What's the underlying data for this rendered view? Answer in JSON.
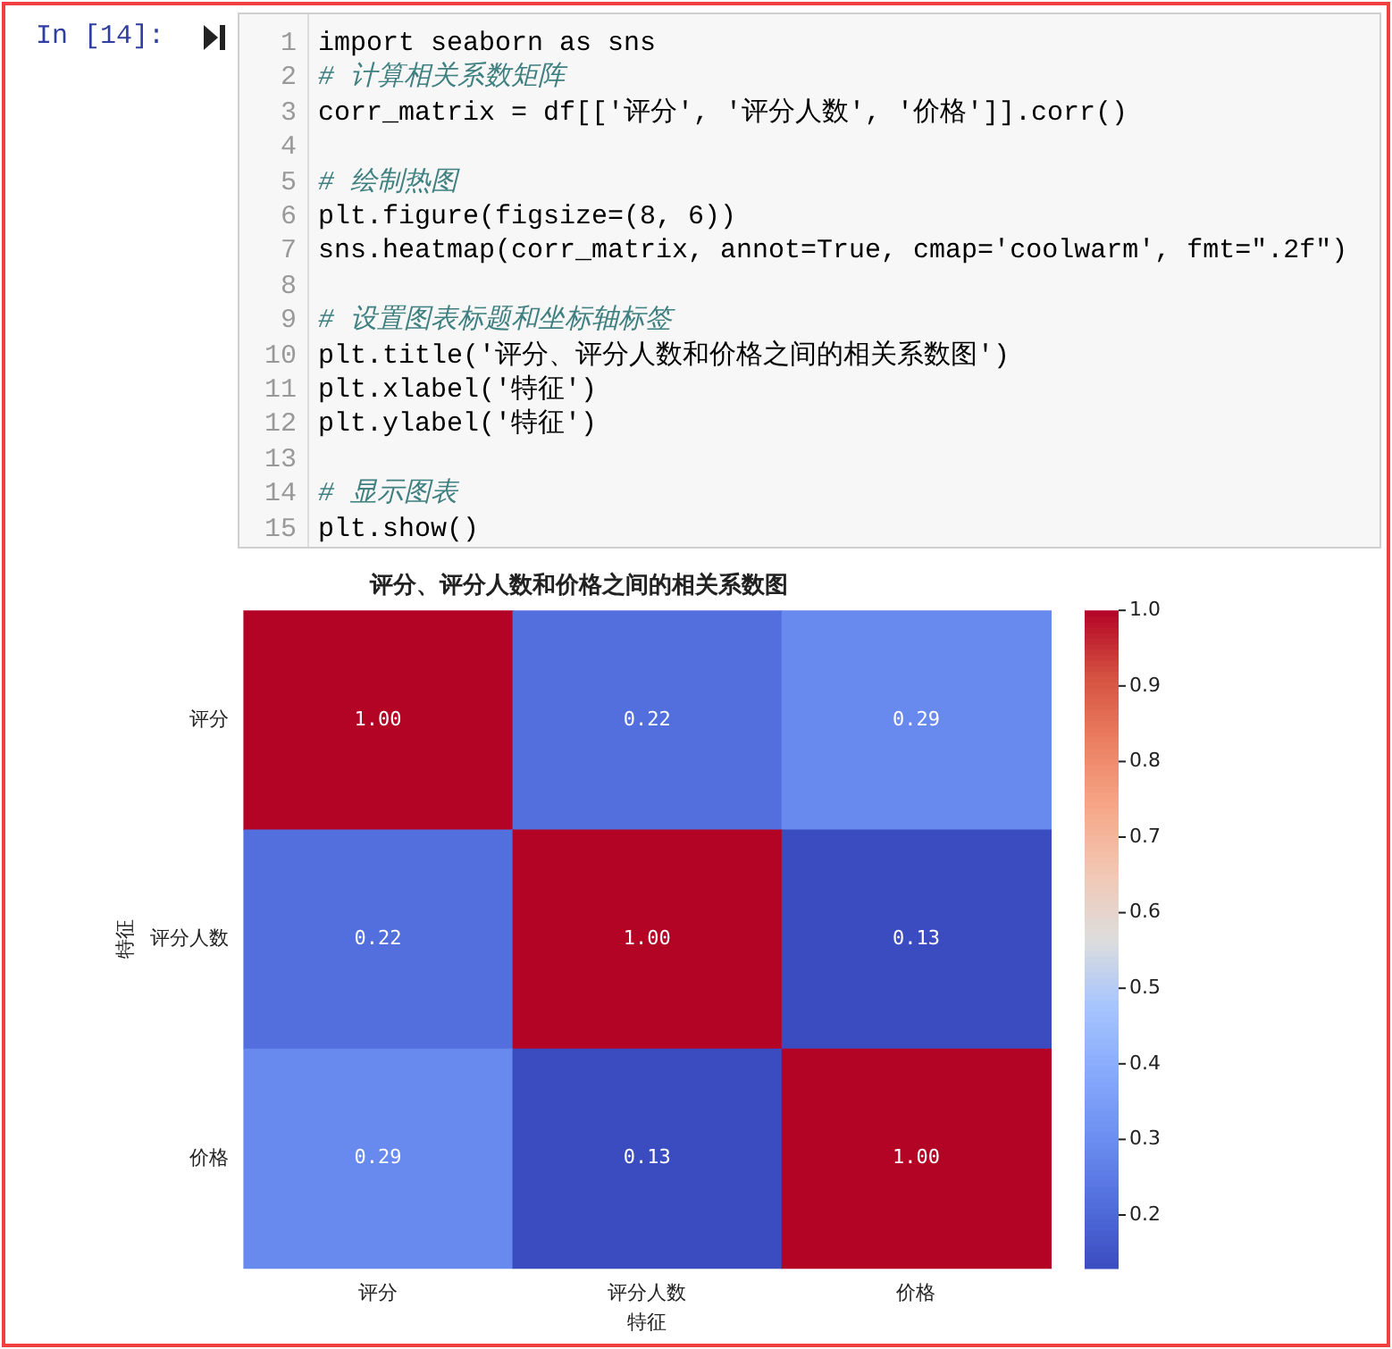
{
  "chart_data": {
    "type": "heatmap",
    "title": "评分、评分人数和价格之间的相关系数图",
    "xlabel": "特征",
    "ylabel": "特征",
    "categories": [
      "评分",
      "评分人数",
      "价格"
    ],
    "y_categories": [
      "评分",
      "评分人数",
      "价格"
    ],
    "cells": [
      [
        1,
        0.22,
        0.29
      ],
      [
        0.22,
        1,
        0.13
      ],
      [
        0.29,
        0.13,
        1
      ]
    ],
    "cell_labels": [
      [
        "1.00",
        "0.22",
        "0.29"
      ],
      [
        "0.22",
        "1.00",
        "0.13"
      ],
      [
        "0.29",
        "0.13",
        "1.00"
      ]
    ],
    "clim": [
      0.13,
      1.0
    ],
    "cticks": [
      0.2,
      0.3,
      0.4,
      0.5,
      0.6,
      0.7,
      0.8,
      0.9,
      {
        "value": 1,
        "label": "1.0"
      }
    ],
    "annotations": [
      "In [14]:",
      "1\n2\n3\n4\n5\n6\n7\n8\n9\n10\n11\n12\n13\n14\n15",
      "import seaborn as sns\n# 计算相关系数矩阵\ncorr_matrix = df[['评分', '评分人数', '价格']].corr()\n\n# 绘制热图\nplt.figure(figsize=(8, 6))\nsns.heatmap(corr_matrix, annot=True, cmap='coolwarm', fmt=\".2f\")\n\n# 设置图表标题和坐标轴标签\nplt.title('评分、评分人数和价格之间的相关系数图')\nplt.xlabel('特征')\nplt.ylabel('特征')\n\n# 显示图表\nplt.show()"
    ]
  }
}
